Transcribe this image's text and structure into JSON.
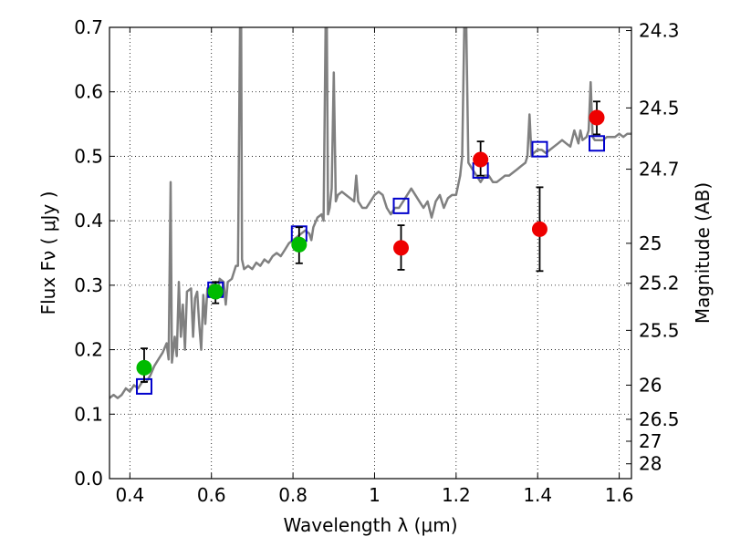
{
  "chart_data": {
    "type": "scatter",
    "title": "",
    "xlabel": "Wavelength  λ (μm)",
    "ylabel": "Flux  Fν  ( μJy )",
    "ylabel_right": "Magnitude (AB)",
    "xlim": [
      0.35,
      1.63
    ],
    "ylim": [
      0,
      0.7
    ],
    "grid": true,
    "x_ticks": [
      0.4,
      0.6,
      0.8,
      1.0,
      1.2,
      1.4,
      1.6
    ],
    "x_tick_labels": [
      "0.4",
      "0.6",
      "0.8",
      "1",
      "1.2",
      "1.4",
      "1.6"
    ],
    "y_ticks": [
      0.0,
      0.1,
      0.2,
      0.3,
      0.4,
      0.5,
      0.6,
      0.7
    ],
    "y_tick_labels": [
      "0.0",
      "0.1",
      "0.2",
      "0.3",
      "0.4",
      "0.5",
      "0.6",
      "0.7"
    ],
    "right_ticks": [
      {
        "label": "24.3",
        "flux": 0.695
      },
      {
        "label": "24.5",
        "flux": 0.575
      },
      {
        "label": "24.7",
        "flux": 0.48
      },
      {
        "label": "25",
        "flux": 0.365
      },
      {
        "label": "25.2",
        "flux": 0.303
      },
      {
        "label": "25.5",
        "flux": 0.23
      },
      {
        "label": "26",
        "flux": 0.145
      },
      {
        "label": "26.5",
        "flux": 0.092
      },
      {
        "label": "27",
        "flux": 0.058
      },
      {
        "label": "28",
        "flux": 0.023
      }
    ],
    "series": [
      {
        "kind": "spectrum",
        "color": "#808080",
        "points": [
          [
            0.35,
            0.125
          ],
          [
            0.36,
            0.13
          ],
          [
            0.37,
            0.125
          ],
          [
            0.38,
            0.13
          ],
          [
            0.39,
            0.14
          ],
          [
            0.4,
            0.135
          ],
          [
            0.41,
            0.145
          ],
          [
            0.42,
            0.14
          ],
          [
            0.43,
            0.15
          ],
          [
            0.44,
            0.15
          ],
          [
            0.45,
            0.16
          ],
          [
            0.46,
            0.175
          ],
          [
            0.47,
            0.185
          ],
          [
            0.48,
            0.195
          ],
          [
            0.49,
            0.21
          ],
          [
            0.495,
            0.185
          ],
          [
            0.5,
            0.46
          ],
          [
            0.503,
            0.18
          ],
          [
            0.51,
            0.22
          ],
          [
            0.515,
            0.19
          ],
          [
            0.52,
            0.305
          ],
          [
            0.525,
            0.22
          ],
          [
            0.53,
            0.27
          ],
          [
            0.535,
            0.2
          ],
          [
            0.54,
            0.29
          ],
          [
            0.55,
            0.295
          ],
          [
            0.555,
            0.22
          ],
          [
            0.56,
            0.28
          ],
          [
            0.565,
            0.29
          ],
          [
            0.57,
            0.24
          ],
          [
            0.575,
            0.2
          ],
          [
            0.58,
            0.285
          ],
          [
            0.585,
            0.24
          ],
          [
            0.59,
            0.295
          ],
          [
            0.6,
            0.3
          ],
          [
            0.61,
            0.305
          ],
          [
            0.615,
            0.28
          ],
          [
            0.62,
            0.31
          ],
          [
            0.63,
            0.305
          ],
          [
            0.635,
            0.27
          ],
          [
            0.64,
            0.305
          ],
          [
            0.65,
            0.31
          ],
          [
            0.66,
            0.33
          ],
          [
            0.665,
            0.33
          ],
          [
            0.67,
            0.7
          ],
          [
            0.673,
            0.7
          ],
          [
            0.675,
            0.34
          ],
          [
            0.68,
            0.325
          ],
          [
            0.69,
            0.33
          ],
          [
            0.7,
            0.325
          ],
          [
            0.71,
            0.335
          ],
          [
            0.72,
            0.33
          ],
          [
            0.73,
            0.34
          ],
          [
            0.74,
            0.335
          ],
          [
            0.75,
            0.345
          ],
          [
            0.76,
            0.35
          ],
          [
            0.77,
            0.345
          ],
          [
            0.78,
            0.355
          ],
          [
            0.79,
            0.365
          ],
          [
            0.8,
            0.37
          ],
          [
            0.81,
            0.375
          ],
          [
            0.82,
            0.38
          ],
          [
            0.83,
            0.385
          ],
          [
            0.84,
            0.38
          ],
          [
            0.845,
            0.37
          ],
          [
            0.85,
            0.39
          ],
          [
            0.86,
            0.405
          ],
          [
            0.87,
            0.41
          ],
          [
            0.875,
            0.4
          ],
          [
            0.88,
            0.7
          ],
          [
            0.883,
            0.7
          ],
          [
            0.886,
            0.41
          ],
          [
            0.89,
            0.42
          ],
          [
            0.895,
            0.45
          ],
          [
            0.9,
            0.63
          ],
          [
            0.905,
            0.43
          ],
          [
            0.91,
            0.44
          ],
          [
            0.92,
            0.445
          ],
          [
            0.93,
            0.44
          ],
          [
            0.94,
            0.435
          ],
          [
            0.95,
            0.43
          ],
          [
            0.955,
            0.47
          ],
          [
            0.96,
            0.43
          ],
          [
            0.97,
            0.42
          ],
          [
            0.98,
            0.42
          ],
          [
            0.99,
            0.43
          ],
          [
            1.0,
            0.44
          ],
          [
            1.01,
            0.445
          ],
          [
            1.02,
            0.44
          ],
          [
            1.03,
            0.42
          ],
          [
            1.04,
            0.41
          ],
          [
            1.05,
            0.42
          ],
          [
            1.06,
            0.42
          ],
          [
            1.07,
            0.43
          ],
          [
            1.08,
            0.44
          ],
          [
            1.09,
            0.45
          ],
          [
            1.1,
            0.44
          ],
          [
            1.11,
            0.43
          ],
          [
            1.12,
            0.42
          ],
          [
            1.13,
            0.43
          ],
          [
            1.14,
            0.405
          ],
          [
            1.15,
            0.43
          ],
          [
            1.16,
            0.44
          ],
          [
            1.17,
            0.42
          ],
          [
            1.18,
            0.435
          ],
          [
            1.19,
            0.44
          ],
          [
            1.2,
            0.44
          ],
          [
            1.21,
            0.47
          ],
          [
            1.215,
            0.5
          ],
          [
            1.22,
            0.7
          ],
          [
            1.225,
            0.7
          ],
          [
            1.23,
            0.49
          ],
          [
            1.24,
            0.48
          ],
          [
            1.25,
            0.47
          ],
          [
            1.26,
            0.46
          ],
          [
            1.27,
            0.47
          ],
          [
            1.28,
            0.47
          ],
          [
            1.29,
            0.46
          ],
          [
            1.3,
            0.46
          ],
          [
            1.31,
            0.465
          ],
          [
            1.32,
            0.47
          ],
          [
            1.33,
            0.47
          ],
          [
            1.34,
            0.475
          ],
          [
            1.35,
            0.48
          ],
          [
            1.36,
            0.485
          ],
          [
            1.37,
            0.49
          ],
          [
            1.375,
            0.5
          ],
          [
            1.38,
            0.565
          ],
          [
            1.385,
            0.5
          ],
          [
            1.39,
            0.505
          ],
          [
            1.4,
            0.51
          ],
          [
            1.41,
            0.51
          ],
          [
            1.42,
            0.505
          ],
          [
            1.43,
            0.51
          ],
          [
            1.44,
            0.515
          ],
          [
            1.45,
            0.52
          ],
          [
            1.46,
            0.525
          ],
          [
            1.47,
            0.52
          ],
          [
            1.48,
            0.515
          ],
          [
            1.49,
            0.54
          ],
          [
            1.5,
            0.52
          ],
          [
            1.505,
            0.54
          ],
          [
            1.51,
            0.525
          ],
          [
            1.52,
            0.53
          ],
          [
            1.525,
            0.54
          ],
          [
            1.53,
            0.615
          ],
          [
            1.535,
            0.53
          ],
          [
            1.54,
            0.525
          ],
          [
            1.55,
            0.525
          ],
          [
            1.56,
            0.525
          ],
          [
            1.57,
            0.53
          ],
          [
            1.58,
            0.53
          ],
          [
            1.59,
            0.53
          ],
          [
            1.6,
            0.535
          ],
          [
            1.61,
            0.53
          ],
          [
            1.62,
            0.535
          ],
          [
            1.63,
            0.535
          ]
        ]
      },
      {
        "kind": "model-squares",
        "color": "#0000cc",
        "points": [
          [
            0.435,
            0.143
          ],
          [
            0.61,
            0.293
          ],
          [
            0.815,
            0.38
          ],
          [
            1.065,
            0.423
          ],
          [
            1.26,
            0.478
          ],
          [
            1.405,
            0.511
          ],
          [
            1.545,
            0.52
          ]
        ]
      },
      {
        "kind": "obs-ground",
        "color": "#00bb00",
        "points": [
          {
            "x": 0.435,
            "y": 0.172,
            "err": [
              0.15,
              0.202
            ]
          },
          {
            "x": 0.61,
            "y": 0.29,
            "err": [
              0.272,
              0.305
            ]
          },
          {
            "x": 0.815,
            "y": 0.363,
            "err": [
              0.334,
              0.39
            ]
          }
        ]
      },
      {
        "kind": "obs-space",
        "color": "#ee0000",
        "points": [
          {
            "x": 1.065,
            "y": 0.358,
            "err": [
              0.324,
              0.393
            ]
          },
          {
            "x": 1.26,
            "y": 0.495,
            "err": [
              0.47,
              0.523
            ]
          },
          {
            "x": 1.405,
            "y": 0.387,
            "err": [
              0.322,
              0.452
            ]
          },
          {
            "x": 1.545,
            "y": 0.56,
            "err": [
              0.534,
              0.585
            ]
          }
        ]
      }
    ]
  }
}
